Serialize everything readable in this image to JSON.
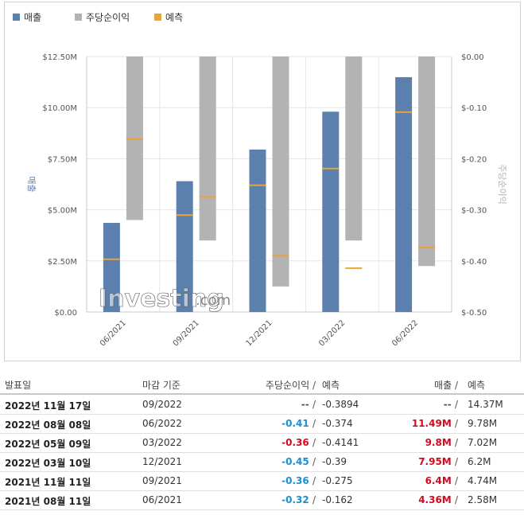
{
  "legend": {
    "revenue": "매출",
    "eps": "주당순이익",
    "forecast": "예측"
  },
  "colors": {
    "revenue": "#5b80ad",
    "eps": "#b3b3b3",
    "forecast": "#e8a33a"
  },
  "watermark": {
    "brand": "Investing",
    "suffix": ".com"
  },
  "chart_data": {
    "type": "bar",
    "categories": [
      "06/2021",
      "09/2021",
      "12/2021",
      "03/2022",
      "06/2022"
    ],
    "left_axis": {
      "label": "매출",
      "range": [
        0,
        12.5
      ],
      "ticks": [
        "$0.00",
        "$2.50M",
        "$5.00M",
        "$7.50M",
        "$10.00M",
        "$12.50M"
      ],
      "tick_values": [
        0,
        2.5,
        5,
        7.5,
        10,
        12.5
      ]
    },
    "right_axis": {
      "label": "주당순이익",
      "range": [
        -0.5,
        0
      ],
      "ticks": [
        "$-0.50",
        "$-0.40",
        "$-0.30",
        "$-0.20",
        "$-0.10",
        "$0.00"
      ],
      "tick_values": [
        -0.5,
        -0.4,
        -0.3,
        -0.2,
        -0.1,
        0
      ]
    },
    "series": [
      {
        "name": "매출",
        "values": [
          4.36,
          6.4,
          7.95,
          9.8,
          11.49
        ],
        "forecast": [
          2.58,
          4.74,
          6.2,
          7.02,
          9.78
        ]
      },
      {
        "name": "주당순이익",
        "values": [
          -0.32,
          -0.36,
          -0.45,
          -0.36,
          -0.41
        ],
        "forecast": [
          -0.162,
          -0.275,
          -0.39,
          -0.4141,
          -0.374
        ]
      }
    ],
    "grid": true
  },
  "table": {
    "headers": {
      "date": "발표일",
      "period": "마감 기준",
      "eps": "주당순이익",
      "eps_forecast": "예측",
      "revenue": "매출",
      "revenue_forecast": "예측"
    },
    "rows": [
      {
        "date": "2022년 11월 17일",
        "period": "09/2022",
        "eps": "--",
        "eps_color": "gray",
        "eps_forecast": "-0.3894",
        "revenue": "--",
        "rev_color": "gray",
        "revenue_forecast": "14.37M"
      },
      {
        "date": "2022년 08월 08일",
        "period": "06/2022",
        "eps": "-0.41",
        "eps_color": "blue",
        "eps_forecast": "-0.374",
        "revenue": "11.49M",
        "rev_color": "red",
        "revenue_forecast": "9.78M"
      },
      {
        "date": "2022년 05월 09일",
        "period": "03/2022",
        "eps": "-0.36",
        "eps_color": "red",
        "eps_forecast": "-0.4141",
        "revenue": "9.8M",
        "rev_color": "red",
        "revenue_forecast": "7.02M"
      },
      {
        "date": "2022년 03월 10일",
        "period": "12/2021",
        "eps": "-0.45",
        "eps_color": "blue",
        "eps_forecast": "-0.39",
        "revenue": "7.95M",
        "rev_color": "red",
        "revenue_forecast": "6.2M"
      },
      {
        "date": "2021년 11월 11일",
        "period": "09/2021",
        "eps": "-0.36",
        "eps_color": "blue",
        "eps_forecast": "-0.275",
        "revenue": "6.4M",
        "rev_color": "red",
        "revenue_forecast": "4.74M"
      },
      {
        "date": "2021년 08월 11일",
        "period": "06/2021",
        "eps": "-0.32",
        "eps_color": "blue",
        "eps_forecast": "-0.162",
        "revenue": "4.36M",
        "rev_color": "red",
        "revenue_forecast": "2.58M"
      }
    ]
  }
}
